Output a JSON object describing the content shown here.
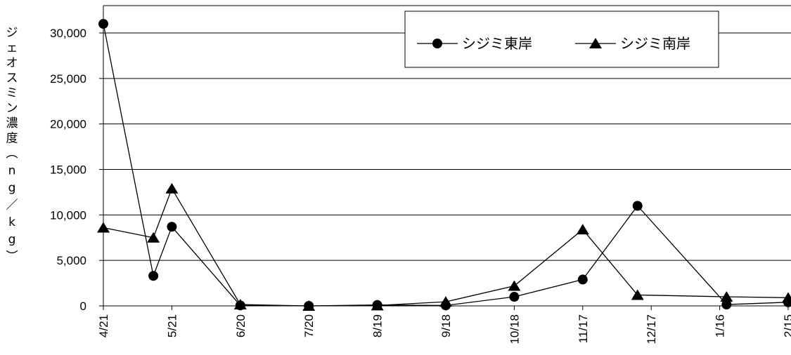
{
  "chart_data": {
    "type": "line",
    "categories": [
      "4/21",
      "5/21",
      "6/20",
      "7/20",
      "8/19",
      "9/18",
      "10/18",
      "11/17",
      "12/17",
      "1/16",
      "2/15"
    ],
    "ylabel": "ジェオスミン濃度（ng/kg）",
    "ylim": [
      0,
      30000
    ],
    "yticks": [
      "0",
      "5,000",
      "10,000",
      "15,000",
      "20,000",
      "25,000",
      "30,000"
    ],
    "grid": "horizontal",
    "legend_position": "top-right",
    "series": [
      {
        "name": "シジミ東岸",
        "marker": "circle",
        "color": "#000000",
        "points": [
          {
            "x": 0,
            "y": 31000
          },
          {
            "x": 0.73,
            "y": 3300
          },
          {
            "x": 1.0,
            "y": 8700
          },
          {
            "x": 2.0,
            "y": 50
          },
          {
            "x": 3.0,
            "y": 0
          },
          {
            "x": 4.0,
            "y": 100
          },
          {
            "x": 5.0,
            "y": 50
          },
          {
            "x": 6.0,
            "y": 1000
          },
          {
            "x": 7.0,
            "y": 2900
          },
          {
            "x": 7.8,
            "y": 11000
          },
          {
            "x": 9.1,
            "y": 150
          },
          {
            "x": 10.0,
            "y": 400
          }
        ]
      },
      {
        "name": "シジミ南岸",
        "marker": "triangle",
        "color": "#000000",
        "points": [
          {
            "x": 0,
            "y": 8600
          },
          {
            "x": 0.73,
            "y": 7500
          },
          {
            "x": 1.0,
            "y": 12900
          },
          {
            "x": 2.0,
            "y": 150
          },
          {
            "x": 3.0,
            "y": 0
          },
          {
            "x": 4.0,
            "y": 50
          },
          {
            "x": 5.0,
            "y": 450
          },
          {
            "x": 6.0,
            "y": 2200
          },
          {
            "x": 7.0,
            "y": 8400
          },
          {
            "x": 7.8,
            "y": 1200
          },
          {
            "x": 9.1,
            "y": 1000
          },
          {
            "x": 10.0,
            "y": 900
          }
        ]
      }
    ]
  }
}
